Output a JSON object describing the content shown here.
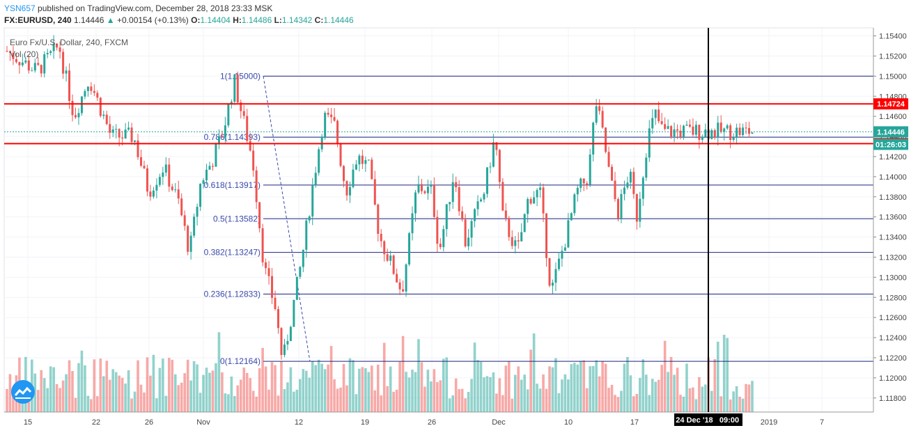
{
  "header": {
    "author": "YSN657",
    "published": "published on TradingView.com, December 28, 2018 23:33 MSK",
    "symbol": "FX:EURUSD, 240",
    "last": "1.14446",
    "change_arrow": "▲",
    "change": "+0.00154 (+0.13%)",
    "o_label": "O:",
    "o_val": "1.14404",
    "h_label": "H:",
    "h_val": "1.14486",
    "l_label": "L:",
    "l_val": "1.14342",
    "c_label": "C:",
    "c_val": "1.14446"
  },
  "legend": {
    "instrument": "Euro Fx/U.S. Dollar, 240, FXCM",
    "volume": "Vol (20)"
  },
  "colors": {
    "up": "#26a69a",
    "down": "#ef5350",
    "fib": "#1a237e",
    "resistance": "#ff0000",
    "crosshair": "#000000",
    "axis_text": "#444444",
    "grid": "#f0f3fa"
  },
  "chart_data": {
    "type": "candlestick",
    "title": "Euro Fx/U.S. Dollar, 240, FXCM",
    "ylim": [
      1.1166,
      1.1548
    ],
    "y_ticks": [
      "1.15400",
      "1.15200",
      "1.15000",
      "1.14800",
      "1.14600",
      "1.14400",
      "1.14200",
      "1.14000",
      "1.13800",
      "1.13600",
      "1.13400",
      "1.13200",
      "1.13000",
      "1.12800",
      "1.12600",
      "1.12400",
      "1.12200",
      "1.12000",
      "1.11800"
    ],
    "x_ticks": [
      "15",
      "22",
      "26",
      "Nov",
      "12",
      "19",
      "26",
      "Dec",
      "10",
      "17",
      "24 Dec '18",
      "09:00",
      "2019",
      "7"
    ],
    "grid": true,
    "fibonacci": [
      {
        "label": "1(1.15000)",
        "value": 1.15
      },
      {
        "label": "0.786(1.14393)",
        "value": 1.14393
      },
      {
        "label": "0.618(1.13917)",
        "value": 1.13917
      },
      {
        "label": "0.5(1.13582)",
        "value": 1.13582
      },
      {
        "label": "0.382(1.13247)",
        "value": 1.13247
      },
      {
        "label": "0.236(1.12833)",
        "value": 1.12833
      },
      {
        "label": "0(1.12164)",
        "value": 1.12164
      }
    ],
    "horizontal_levels": [
      {
        "label": "1.14724",
        "value": 1.14724
      },
      {
        "label": "1.14329",
        "value": 1.14329
      }
    ],
    "price_labels": [
      {
        "label": "1.14446",
        "value": 1.14446,
        "color": "#26a69a"
      },
      {
        "label": "01:26:03",
        "value": 1.14446,
        "color": "#26a69a"
      }
    ],
    "crosshair_date": "24 Dec '18",
    "crosshair_time": "09:00",
    "path": [
      {
        "t": 0,
        "p": 1.1525
      },
      {
        "t": 0.04,
        "p": 1.1505
      },
      {
        "t": 0.07,
        "p": 1.153
      },
      {
        "t": 0.09,
        "p": 1.146
      },
      {
        "t": 0.11,
        "p": 1.1498
      },
      {
        "t": 0.14,
        "p": 1.144
      },
      {
        "t": 0.17,
        "p": 1.144
      },
      {
        "t": 0.19,
        "p": 1.1385
      },
      {
        "t": 0.21,
        "p": 1.141
      },
      {
        "t": 0.23,
        "p": 1.1375
      },
      {
        "t": 0.245,
        "p": 1.1325
      },
      {
        "t": 0.26,
        "p": 1.1395
      },
      {
        "t": 0.275,
        "p": 1.1415
      },
      {
        "t": 0.29,
        "p": 1.1445
      },
      {
        "t": 0.305,
        "p": 1.1495
      },
      {
        "t": 0.33,
        "p": 1.1415
      },
      {
        "t": 0.345,
        "p": 1.131
      },
      {
        "t": 0.36,
        "p": 1.127
      },
      {
        "t": 0.37,
        "p": 1.1215
      },
      {
        "t": 0.395,
        "p": 1.1315
      },
      {
        "t": 0.41,
        "p": 1.139
      },
      {
        "t": 0.425,
        "p": 1.146
      },
      {
        "t": 0.44,
        "p": 1.145
      },
      {
        "t": 0.455,
        "p": 1.1385
      },
      {
        "t": 0.47,
        "p": 1.142
      },
      {
        "t": 0.485,
        "p": 1.141
      },
      {
        "t": 0.5,
        "p": 1.134
      },
      {
        "t": 0.52,
        "p": 1.1305
      },
      {
        "t": 0.53,
        "p": 1.1285
      },
      {
        "t": 0.55,
        "p": 1.139
      },
      {
        "t": 0.57,
        "p": 1.1385
      },
      {
        "t": 0.58,
        "p": 1.1325
      },
      {
        "t": 0.6,
        "p": 1.1405
      },
      {
        "t": 0.615,
        "p": 1.1335
      },
      {
        "t": 0.64,
        "p": 1.1385
      },
      {
        "t": 0.655,
        "p": 1.144
      },
      {
        "t": 0.665,
        "p": 1.136
      },
      {
        "t": 0.685,
        "p": 1.1325
      },
      {
        "t": 0.7,
        "p": 1.138
      },
      {
        "t": 0.715,
        "p": 1.1385
      },
      {
        "t": 0.725,
        "p": 1.132
      },
      {
        "t": 0.73,
        "p": 1.1285
      },
      {
        "t": 0.75,
        "p": 1.134
      },
      {
        "t": 0.765,
        "p": 1.1385
      },
      {
        "t": 0.78,
        "p": 1.14
      },
      {
        "t": 0.79,
        "p": 1.1475
      },
      {
        "t": 0.8,
        "p": 1.144
      },
      {
        "t": 0.81,
        "p": 1.1395
      },
      {
        "t": 0.82,
        "p": 1.1365
      },
      {
        "t": 0.835,
        "p": 1.1405
      },
      {
        "t": 0.845,
        "p": 1.136
      },
      {
        "t": 0.86,
        "p": 1.144
      },
      {
        "t": 0.87,
        "p": 1.1462
      },
      {
        "t": 0.88,
        "p": 1.1445
      }
    ]
  }
}
